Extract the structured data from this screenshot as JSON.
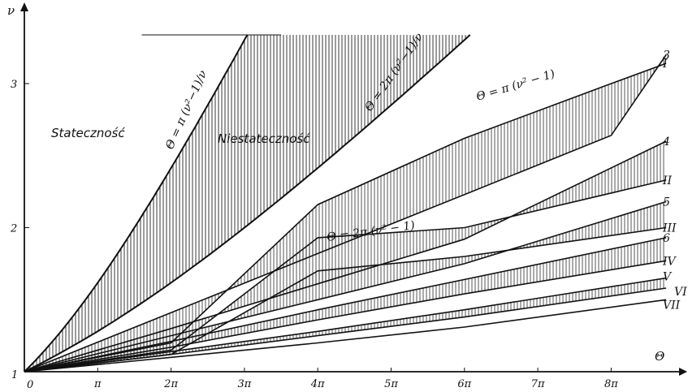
{
  "chart_data": {
    "type": "line",
    "title": "",
    "xlabel": "Θ",
    "ylabel": "ν",
    "xlim": [
      0,
      8.75
    ],
    "ylim": [
      1,
      3.45
    ],
    "grid": false,
    "origin_labels": {
      "x": "0",
      "y": "1"
    },
    "x_ticks": [
      {
        "value": 1,
        "label": "π"
      },
      {
        "value": 2,
        "label": "2π"
      },
      {
        "value": 3,
        "label": "3π"
      },
      {
        "value": 4,
        "label": "4π"
      },
      {
        "value": 5,
        "label": "5π"
      },
      {
        "value": 6,
        "label": "6π"
      },
      {
        "value": 7,
        "label": "7π"
      },
      {
        "value": 8,
        "label": "8π"
      }
    ],
    "y_ticks": [
      {
        "value": 2,
        "label": "2"
      },
      {
        "value": 3,
        "label": "3"
      }
    ],
    "region_labels": {
      "stable": "Stateczność",
      "unstable": "Niestateczność"
    },
    "formulas": {
      "left_boundary": "Θ = π (ν²−1)/ν",
      "right_boundary": "Θ = 2π (ν²−1)/ν",
      "curve_pi": "Θ = π (ν² − 1)",
      "curve_2pi": "Θ = 2π (ν² − 1)"
    },
    "series": [
      {
        "name": "3",
        "x": [
          0,
          2,
          4,
          6,
          8,
          8.75
        ],
        "y": [
          1,
          1.41,
          1.82,
          2.23,
          2.64,
          3.2
        ]
      },
      {
        "name": "I",
        "x": [
          0,
          2,
          4,
          6,
          8,
          8.75
        ],
        "y": [
          1,
          1.2,
          2.16,
          2.62,
          3.0,
          3.14
        ]
      },
      {
        "name": "4",
        "x": [
          0,
          2,
          4,
          6,
          8.75
        ],
        "y": [
          1,
          1.3,
          1.61,
          1.92,
          2.6
        ]
      },
      {
        "name": "II",
        "x": [
          0,
          2,
          4,
          6,
          8.75
        ],
        "y": [
          1,
          1.15,
          1.93,
          2.0,
          2.33
        ]
      },
      {
        "name": "5",
        "x": [
          0,
          2,
          4,
          6,
          8.75
        ],
        "y": [
          1,
          1.25,
          1.5,
          1.75,
          2.18
        ]
      },
      {
        "name": "III",
        "x": [
          0,
          2,
          4,
          6,
          8.75
        ],
        "y": [
          1,
          1.12,
          1.7,
          1.8,
          2.0
        ]
      },
      {
        "name": "6",
        "x": [
          0,
          2,
          4,
          6,
          8.75
        ],
        "y": [
          1,
          1.21,
          1.43,
          1.64,
          1.93
        ]
      },
      {
        "name": "IV",
        "x": [
          0,
          2,
          4,
          6,
          8.75
        ],
        "y": [
          1,
          1.17,
          1.36,
          1.54,
          1.77
        ]
      },
      {
        "name": "V",
        "x": [
          0,
          2,
          4,
          6,
          8.75
        ],
        "y": [
          1,
          1.14,
          1.28,
          1.43,
          1.65
        ]
      },
      {
        "name": "VI",
        "x": [
          0,
          2,
          4,
          6,
          8.75
        ],
        "y": [
          1,
          1.12,
          1.25,
          1.38,
          1.58
        ]
      },
      {
        "name": "VII",
        "x": [
          0,
          2,
          4,
          6,
          8.75
        ],
        "y": [
          1,
          1.1,
          1.2,
          1.31,
          1.5
        ]
      }
    ]
  }
}
